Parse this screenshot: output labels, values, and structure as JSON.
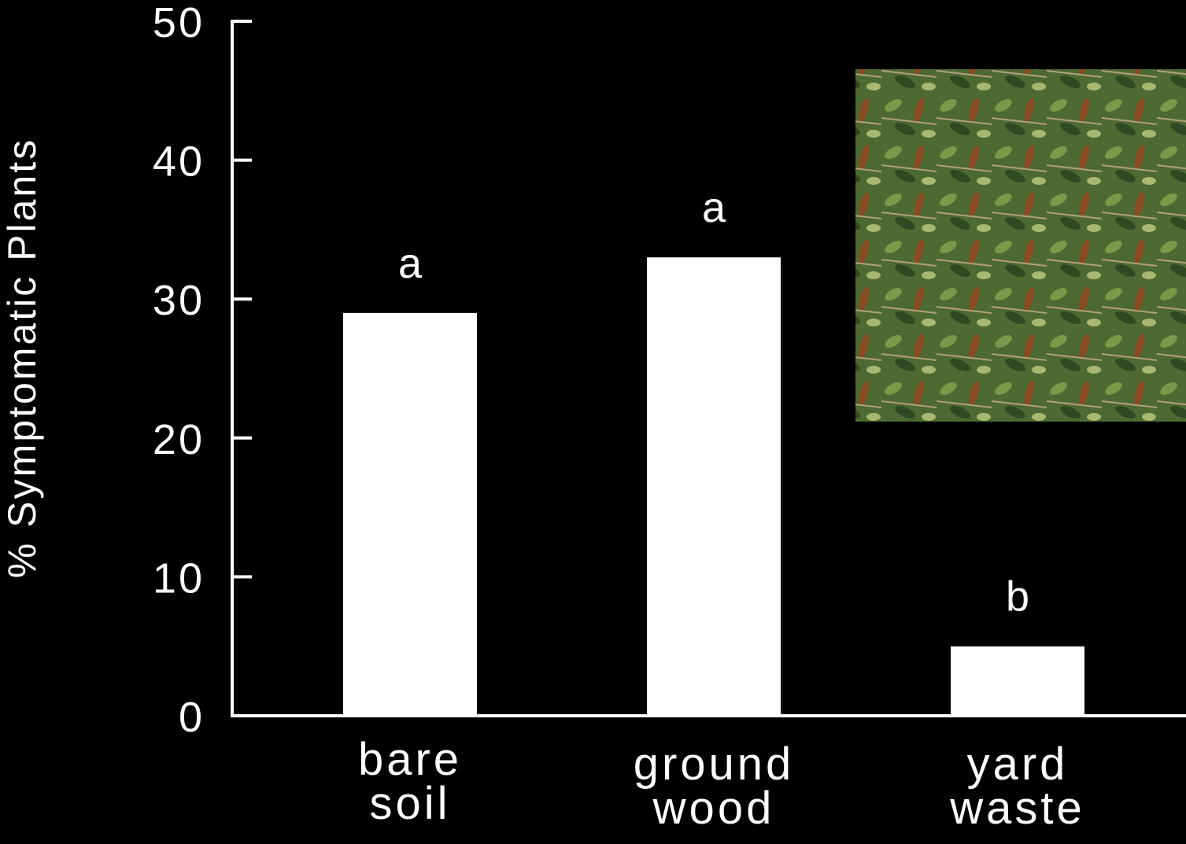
{
  "chart_data": {
    "type": "bar",
    "y_label": "% Symptomatic Plants",
    "categories": [
      "bare\nsoil",
      "ground\nwood",
      "yard\nwaste"
    ],
    "values": [
      29,
      33,
      5
    ],
    "letters": [
      "a",
      "a",
      "b"
    ],
    "color": "#ffffff",
    "ylim": [
      0,
      50
    ],
    "yticks": [
      0,
      10,
      20,
      30,
      40,
      50
    ]
  }
}
